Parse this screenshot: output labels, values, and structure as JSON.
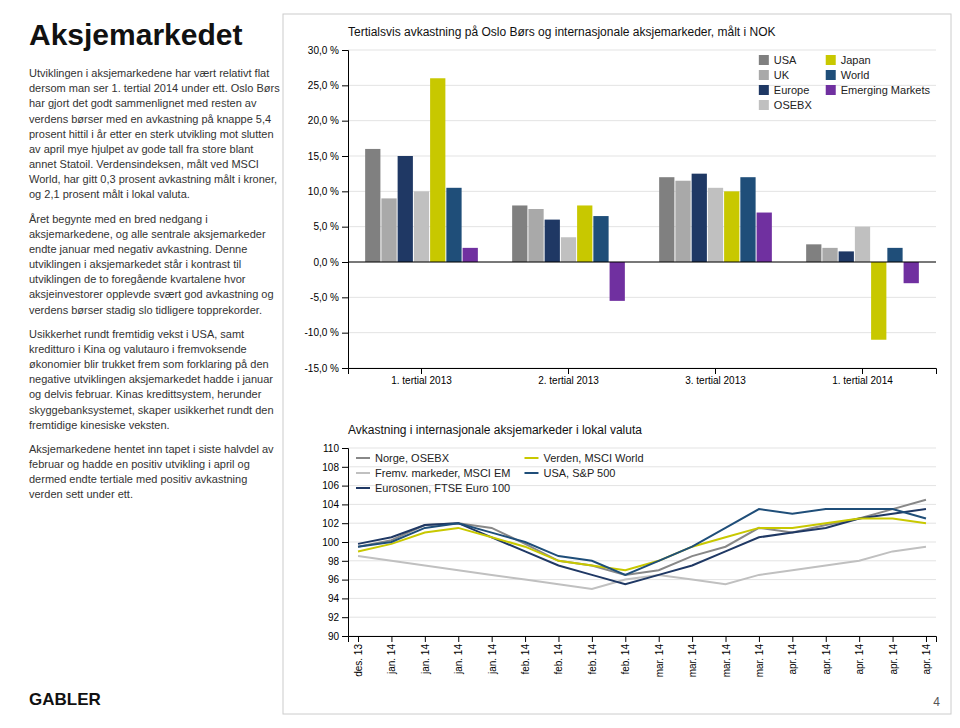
{
  "title": "Aksjemarkedet",
  "paragraphs": [
    "Utviklingen i aksjemarkedene har vært relativt flat dersom man ser 1. tertial 2014 under ett. Oslo Børs har gjort det godt sammenlignet med resten av verdens børser med en avkastning på knappe 5,4 prosent hittil i år etter en sterk utvikling mot slutten av april mye hjulpet av gode tall fra store blant annet Statoil. Verdensindeksen, målt ved MSCI World, har gitt 0,3 prosent avkastning målt i kroner, og 2,1 prosent målt i lokal valuta.",
    "Året begynte med en bred nedgang i aksjemarkedene, og alle sentrale aksjemarkeder endte januar med negativ avkastning. Denne utviklingen i aksjemarkedet står i kontrast til utviklingen de to foregående kvartalene hvor aksjeinvestorer opplevde svært god avkastning og verdens børser stadig slo tidligere topprekorder.",
    "Usikkerhet rundt fremtidig vekst i USA, samt kreditturo i Kina og valutauro i fremvoksende økonomier blir trukket frem som forklaring på den negative utviklingen aksjemarkedet hadde i januar og delvis februar. Kinas kredittsystem, herunder skyggebanksystemet, skaper usikkerhet rundt den fremtidige kinesiske veksten.",
    "Aksjemarkedene hentet inn tapet i siste halvdel av februar og hadde en positiv utvikling i april og dermed endte tertiale med positiv avkastning verden sett under ett."
  ],
  "footer": "GABLER",
  "page_number": "4",
  "chart_data": [
    {
      "type": "bar",
      "title": "Tertialsvis avkastning på Oslo Børs og internasjonale aksjemarkeder, målt i NOK",
      "categories": [
        "1. tertial 2013",
        "2. tertial 2013",
        "3. tertial 2013",
        "1. tertial 2014"
      ],
      "series": [
        {
          "name": "USA",
          "color": "#808080",
          "values": [
            16.0,
            8.0,
            12.0,
            2.5
          ]
        },
        {
          "name": "UK",
          "color": "#a9a9a9",
          "values": [
            9.0,
            7.5,
            11.5,
            2.0
          ]
        },
        {
          "name": "Europe",
          "color": "#1f3864",
          "values": [
            15.0,
            6.0,
            12.5,
            1.5
          ]
        },
        {
          "name": "OSEBX",
          "color": "#c0c0c0",
          "values": [
            10.0,
            3.5,
            10.5,
            5.0
          ]
        },
        {
          "name": "Japan",
          "color": "#c8c800",
          "values": [
            26.0,
            8.0,
            10.0,
            -11.0
          ]
        },
        {
          "name": "World",
          "color": "#1f4e79",
          "values": [
            10.5,
            6.5,
            12.0,
            2.0
          ]
        },
        {
          "name": "Emerging Markets",
          "color": "#7030a0",
          "values": [
            2.0,
            -5.5,
            7.0,
            -3.0
          ]
        }
      ],
      "ylim": [
        -15.0,
        30.0
      ],
      "yticks": [
        {
          "value": -15.0,
          "label": "-15,0 %"
        },
        {
          "value": -10.0,
          "label": "-10,0 %"
        },
        {
          "value": -5.0,
          "label": "-5,0 %"
        },
        {
          "value": 0.0,
          "label": "0,0 %"
        },
        {
          "value": 5.0,
          "label": "5,0 %"
        },
        {
          "value": 10.0,
          "label": "10,0 %"
        },
        {
          "value": 15.0,
          "label": "15,0 %"
        },
        {
          "value": 20.0,
          "label": "20,0 %"
        },
        {
          "value": 25.0,
          "label": "25,0 %"
        },
        {
          "value": 30.0,
          "label": "30,0 %"
        }
      ],
      "grid": true,
      "legend": "upper right"
    },
    {
      "type": "line",
      "title": "Avkastning i internasjonale aksjemarkeder i lokal valuta",
      "categories": [
        "des. 13",
        "jan. 14",
        "jan. 14",
        "jan. 14",
        "jan. 14",
        "feb. 14",
        "feb. 14",
        "feb. 14",
        "feb. 14",
        "mar. 14",
        "mar. 14",
        "mar. 14",
        "mar. 14",
        "apr. 14",
        "apr. 14",
        "apr. 14",
        "apr. 14",
        "apr. 14"
      ],
      "series": [
        {
          "name": "Norge, OSEBX",
          "color": "#888888",
          "values": [
            99.5,
            100.2,
            101.8,
            102.0,
            101.5,
            99.8,
            98.0,
            97.5,
            96.5,
            97.0,
            98.5,
            99.5,
            101.5,
            101.0,
            101.8,
            102.5,
            103.5,
            104.5
          ]
        },
        {
          "name": "Fremv. markeder, MSCI EM",
          "color": "#c0c0c0",
          "values": [
            98.5,
            98.0,
            97.5,
            97.0,
            96.5,
            96.0,
            95.5,
            95.0,
            96.0,
            96.5,
            96.0,
            95.5,
            96.5,
            97.0,
            97.5,
            98.0,
            99.0,
            99.5
          ]
        },
        {
          "name": "Eurosonen, FTSE Euro 100",
          "color": "#1f3864",
          "values": [
            99.8,
            100.5,
            101.8,
            102.0,
            100.5,
            99.0,
            97.5,
            96.5,
            95.5,
            96.5,
            97.5,
            99.0,
            100.5,
            101.0,
            101.5,
            102.5,
            103.0,
            103.5
          ]
        },
        {
          "name": "Verden, MSCI World",
          "color": "#c8c800",
          "values": [
            99.0,
            99.8,
            101.0,
            101.5,
            100.5,
            99.5,
            98.0,
            97.5,
            97.0,
            98.0,
            99.5,
            100.5,
            101.5,
            101.5,
            102.0,
            102.5,
            102.5,
            102.0
          ]
        },
        {
          "name": "USA, S&P 500",
          "color": "#1f4e79",
          "values": [
            99.5,
            100.0,
            101.5,
            102.0,
            101.0,
            100.0,
            98.5,
            98.0,
            96.5,
            98.0,
            99.5,
            101.5,
            103.5,
            103.0,
            103.5,
            103.5,
            103.5,
            102.5
          ]
        }
      ],
      "ylim": [
        90,
        110
      ],
      "yticks": [
        90,
        92,
        94,
        96,
        98,
        100,
        102,
        104,
        106,
        108,
        110
      ],
      "grid": true,
      "legend": "upper left"
    }
  ]
}
